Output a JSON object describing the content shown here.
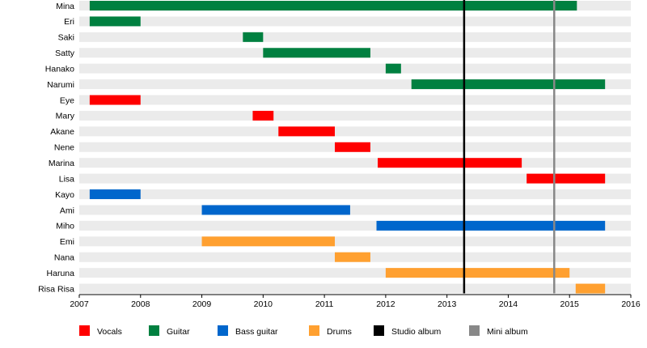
{
  "chart_data": {
    "type": "gantt",
    "x_axis": {
      "min": 2007,
      "max": 2016,
      "ticks": [
        "2007",
        "2008",
        "2009",
        "2010",
        "2011",
        "2012",
        "2013",
        "2014",
        "2015",
        "2016"
      ]
    },
    "rows": [
      "Mina",
      "Eri",
      "Saki",
      "Satty",
      "Hanako",
      "Narumi",
      "Eye",
      "Mary",
      "Akane",
      "Nene",
      "Marina",
      "Lisa",
      "Kayo",
      "Ami",
      "Miho",
      "Emi",
      "Nana",
      "Haruna",
      "Risa Risa"
    ],
    "categories": [
      {
        "key": "vocals",
        "label": "Vocals",
        "color": "#ff0000"
      },
      {
        "key": "guitar",
        "label": "Guitar",
        "color": "#008040"
      },
      {
        "key": "bass",
        "label": "Bass guitar",
        "color": "#0066cc"
      },
      {
        "key": "drums",
        "label": "Drums",
        "color": "#ffa030"
      }
    ],
    "bars": [
      {
        "member": "Mina",
        "role": "guitar",
        "start": 2007.17,
        "end": 2015.12
      },
      {
        "member": "Eri",
        "role": "guitar",
        "start": 2007.17,
        "end": 2008.0
      },
      {
        "member": "Saki",
        "role": "guitar",
        "start": 2009.67,
        "end": 2010.0
      },
      {
        "member": "Satty",
        "role": "guitar",
        "start": 2010.0,
        "end": 2011.75
      },
      {
        "member": "Hanako",
        "role": "guitar",
        "start": 2012.0,
        "end": 2012.25
      },
      {
        "member": "Narumi",
        "role": "guitar",
        "start": 2012.42,
        "end": 2015.58
      },
      {
        "member": "Eye",
        "role": "vocals",
        "start": 2007.17,
        "end": 2008.0
      },
      {
        "member": "Mary",
        "role": "vocals",
        "start": 2009.83,
        "end": 2010.17
      },
      {
        "member": "Akane",
        "role": "vocals",
        "start": 2010.25,
        "end": 2011.17
      },
      {
        "member": "Nene",
        "role": "vocals",
        "start": 2011.17,
        "end": 2011.75
      },
      {
        "member": "Marina",
        "role": "vocals",
        "start": 2011.87,
        "end": 2014.22
      },
      {
        "member": "Lisa",
        "role": "vocals",
        "start": 2014.3,
        "end": 2015.58
      },
      {
        "member": "Kayo",
        "role": "bass",
        "start": 2007.17,
        "end": 2008.0
      },
      {
        "member": "Ami",
        "role": "bass",
        "start": 2009.0,
        "end": 2011.42
      },
      {
        "member": "Miho",
        "role": "bass",
        "start": 2011.85,
        "end": 2015.58
      },
      {
        "member": "Emi",
        "role": "drums",
        "start": 2009.0,
        "end": 2011.17
      },
      {
        "member": "Nana",
        "role": "drums",
        "start": 2011.17,
        "end": 2011.75
      },
      {
        "member": "Haruna",
        "role": "drums",
        "start": 2012.0,
        "end": 2015.0
      },
      {
        "member": "Risa Risa",
        "role": "drums",
        "start": 2015.1,
        "end": 2015.58
      }
    ],
    "markers": [
      {
        "key": "studio_album",
        "label": "Studio album",
        "color": "#000000",
        "values": [
          2013.28
        ]
      },
      {
        "key": "mini_album",
        "label": "Mini album",
        "color": "#888888",
        "values": [
          2014.75
        ]
      }
    ],
    "legend": {
      "position": "bottom",
      "items": [
        {
          "label": "Vocals",
          "color": "#ff0000"
        },
        {
          "label": "Guitar",
          "color": "#008040"
        },
        {
          "label": "Bass guitar",
          "color": "#0066cc"
        },
        {
          "label": "Drums",
          "color": "#ffa030"
        },
        {
          "label": "Studio album",
          "color": "#000000"
        },
        {
          "label": "Mini album",
          "color": "#888888"
        }
      ]
    },
    "row_band_color": "#ebebeb"
  }
}
